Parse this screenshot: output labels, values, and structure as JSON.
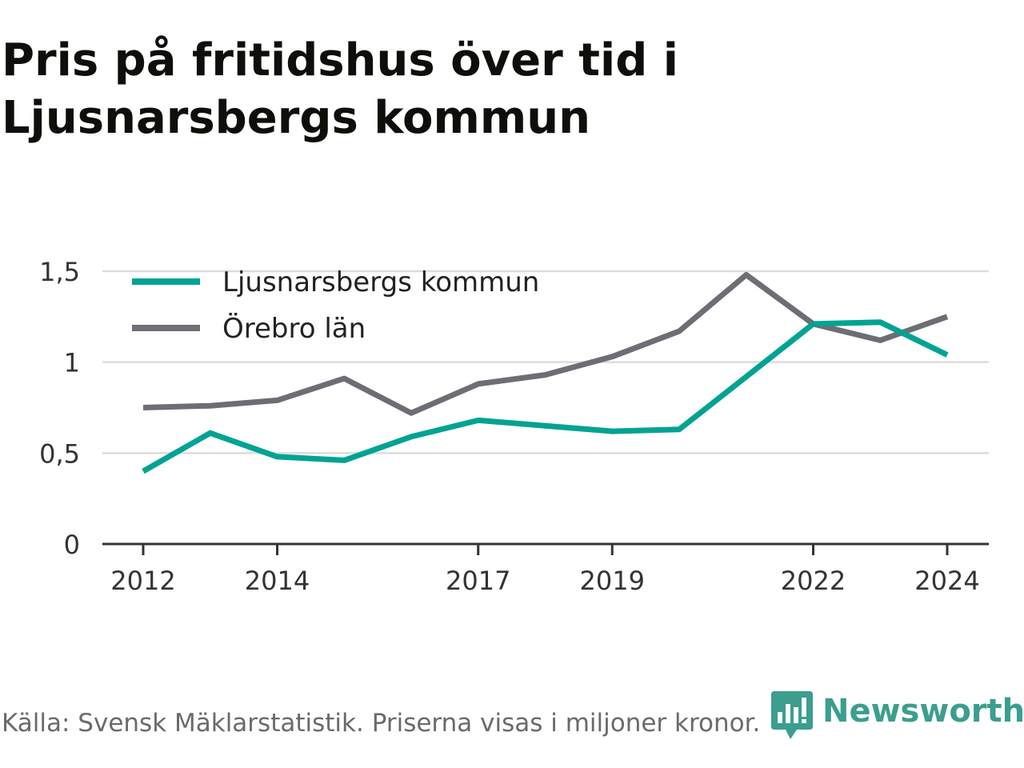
{
  "title": "Pris på fritidshus över tid i Ljusnarsbergs kommun",
  "footer": {
    "source": "Källa: Svensk Mäklarstatistik. Priserna visas i miljoner kronor."
  },
  "brand": {
    "name": "Newsworthy",
    "color": "#3b9e8f",
    "icon": "newsworthy-logo-icon"
  },
  "chart_data": {
    "type": "line",
    "x": [
      2012,
      2013,
      2014,
      2015,
      2016,
      2017,
      2018,
      2019,
      2020,
      2021,
      2022,
      2023,
      2024
    ],
    "xticks": [
      2012,
      2014,
      2017,
      2019,
      2022,
      2024
    ],
    "yticks": [
      0,
      0.5,
      1,
      1.5
    ],
    "ytick_labels": [
      "0",
      "0,5",
      "1",
      "1,5"
    ],
    "ylim": [
      0,
      1.5
    ],
    "grid": true,
    "legend_position": "top-left",
    "series": [
      {
        "name": "Ljusnarsbergs kommun",
        "color": "#00a392",
        "values": [
          0.4,
          0.61,
          0.48,
          0.46,
          0.59,
          0.68,
          0.65,
          0.62,
          0.63,
          0.92,
          1.21,
          1.22,
          1.04
        ]
      },
      {
        "name": "Örebro län",
        "color": "#6e6d75",
        "values": [
          0.75,
          0.76,
          0.79,
          0.91,
          0.72,
          0.88,
          0.93,
          1.03,
          1.17,
          1.48,
          1.21,
          1.12,
          1.25
        ]
      }
    ]
  }
}
